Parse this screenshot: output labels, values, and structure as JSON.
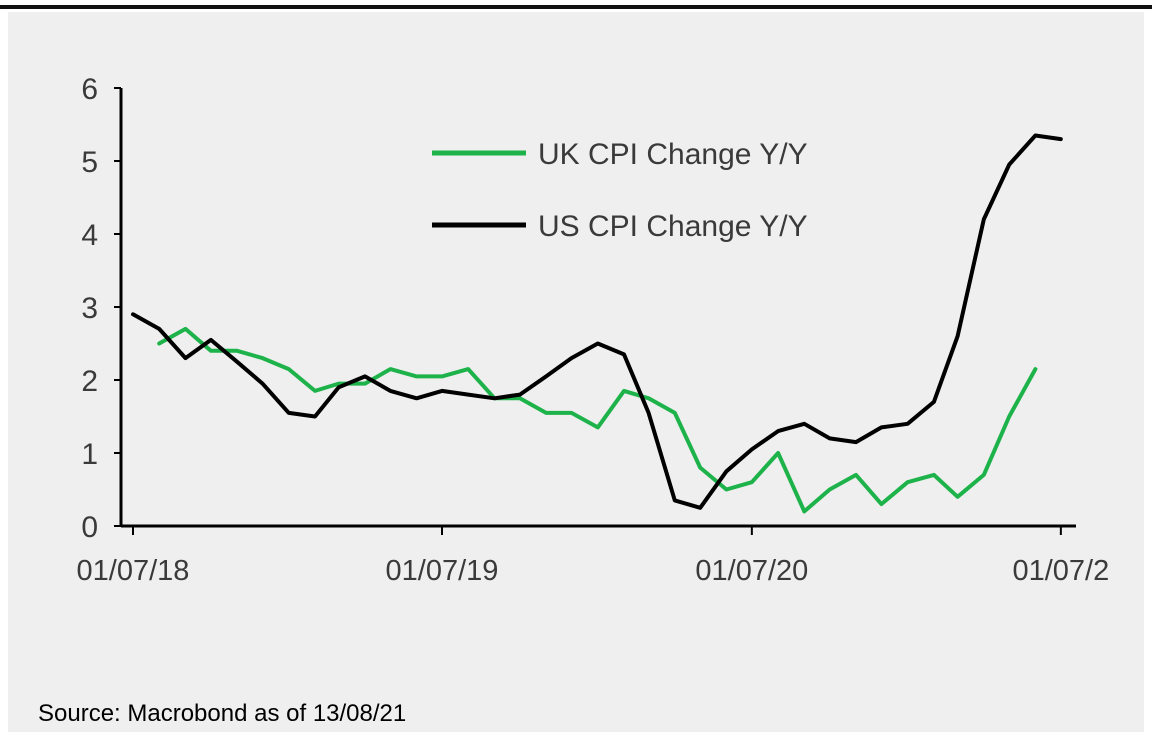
{
  "source_note": "Source: Macrobond as of 13/08/21",
  "chart_data": {
    "type": "line",
    "x_type": "date",
    "x_start": "2018-07-01",
    "x_end": "2021-08-01",
    "ylim": [
      0,
      6
    ],
    "y_ticks": [
      0,
      1,
      2,
      3,
      4,
      5,
      6
    ],
    "x_ticks": [
      {
        "date": "2018-07-01",
        "label": "01/07/18"
      },
      {
        "date": "2019-07-01",
        "label": "01/07/19"
      },
      {
        "date": "2020-07-01",
        "label": "01/07/20"
      },
      {
        "date": "2021-07-01",
        "label": "01/07/2"
      }
    ],
    "legend_position": "top-center",
    "grid": false,
    "series": [
      {
        "name": "UK CPI Change Y/Y",
        "color": "#1db34a",
        "points": [
          [
            "2018-08-01",
            2.5
          ],
          [
            "2018-09-01",
            2.7
          ],
          [
            "2018-10-01",
            2.4
          ],
          [
            "2018-11-01",
            2.4
          ],
          [
            "2018-12-01",
            2.3
          ],
          [
            "2019-01-01",
            2.15
          ],
          [
            "2019-02-01",
            1.85
          ],
          [
            "2019-03-01",
            1.95
          ],
          [
            "2019-04-01",
            1.95
          ],
          [
            "2019-05-01",
            2.15
          ],
          [
            "2019-06-01",
            2.05
          ],
          [
            "2019-07-01",
            2.05
          ],
          [
            "2019-08-01",
            2.15
          ],
          [
            "2019-09-01",
            1.75
          ],
          [
            "2019-10-01",
            1.75
          ],
          [
            "2019-11-01",
            1.55
          ],
          [
            "2019-12-01",
            1.55
          ],
          [
            "2020-01-01",
            1.35
          ],
          [
            "2020-02-01",
            1.85
          ],
          [
            "2020-03-01",
            1.75
          ],
          [
            "2020-04-01",
            1.55
          ],
          [
            "2020-05-01",
            0.8
          ],
          [
            "2020-06-01",
            0.5
          ],
          [
            "2020-07-01",
            0.6
          ],
          [
            "2020-08-01",
            1.0
          ],
          [
            "2020-09-01",
            0.2
          ],
          [
            "2020-10-01",
            0.5
          ],
          [
            "2020-11-01",
            0.7
          ],
          [
            "2020-12-01",
            0.3
          ],
          [
            "2021-01-01",
            0.6
          ],
          [
            "2021-02-01",
            0.7
          ],
          [
            "2021-03-01",
            0.4
          ],
          [
            "2021-04-01",
            0.7
          ],
          [
            "2021-05-01",
            1.5
          ],
          [
            "2021-06-01",
            2.15
          ]
        ]
      },
      {
        "name": "US CPI Change Y/Y",
        "color": "#000000",
        "points": [
          [
            "2018-07-01",
            2.9
          ],
          [
            "2018-08-01",
            2.7
          ],
          [
            "2018-09-01",
            2.3
          ],
          [
            "2018-10-01",
            2.55
          ],
          [
            "2018-11-01",
            2.25
          ],
          [
            "2018-12-01",
            1.95
          ],
          [
            "2019-01-01",
            1.55
          ],
          [
            "2019-02-01",
            1.5
          ],
          [
            "2019-03-01",
            1.9
          ],
          [
            "2019-04-01",
            2.05
          ],
          [
            "2019-05-01",
            1.85
          ],
          [
            "2019-06-01",
            1.75
          ],
          [
            "2019-07-01",
            1.85
          ],
          [
            "2019-08-01",
            1.8
          ],
          [
            "2019-09-01",
            1.75
          ],
          [
            "2019-10-01",
            1.8
          ],
          [
            "2019-11-01",
            2.05
          ],
          [
            "2019-12-01",
            2.3
          ],
          [
            "2020-01-01",
            2.5
          ],
          [
            "2020-02-01",
            2.35
          ],
          [
            "2020-03-01",
            1.55
          ],
          [
            "2020-04-01",
            0.35
          ],
          [
            "2020-05-01",
            0.25
          ],
          [
            "2020-06-01",
            0.75
          ],
          [
            "2020-07-01",
            1.05
          ],
          [
            "2020-08-01",
            1.3
          ],
          [
            "2020-09-01",
            1.4
          ],
          [
            "2020-10-01",
            1.2
          ],
          [
            "2020-11-01",
            1.15
          ],
          [
            "2020-12-01",
            1.35
          ],
          [
            "2021-01-01",
            1.4
          ],
          [
            "2021-02-01",
            1.7
          ],
          [
            "2021-03-01",
            2.6
          ],
          [
            "2021-04-01",
            4.2
          ],
          [
            "2021-05-01",
            4.95
          ],
          [
            "2021-06-01",
            5.35
          ],
          [
            "2021-07-01",
            5.3
          ]
        ]
      }
    ]
  }
}
